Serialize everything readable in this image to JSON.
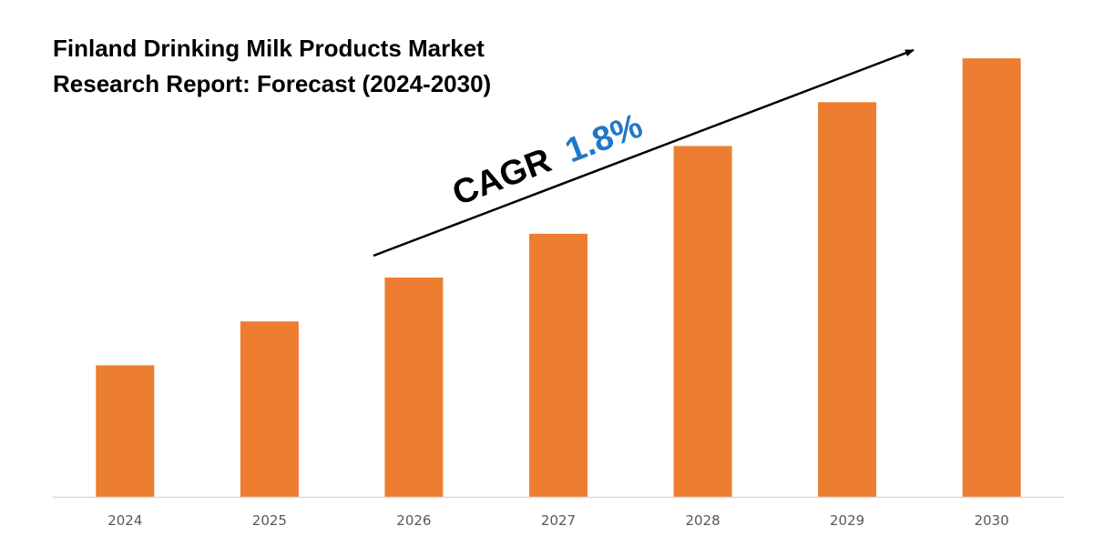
{
  "chart_data": {
    "type": "bar",
    "title": "Finland Drinking Milk Products Market Research Report: Forecast (2024-2030)",
    "title_lines": [
      "Finland Drinking Milk Products Market",
      "Research Report: Forecast (2024-2030)"
    ],
    "categories": [
      "2024",
      "2025",
      "2026",
      "2027",
      "2028",
      "2029",
      "2030"
    ],
    "values": [
      30,
      40,
      50,
      60,
      80,
      90,
      100
    ],
    "ylim": [
      0,
      105
    ],
    "xlabel": "",
    "ylabel": "",
    "grid": false,
    "legend": "none",
    "annotation": {
      "label": "CAGR",
      "value": "1.8%"
    }
  },
  "colors": {
    "bar": "#ED7D31",
    "cagr_value": "#1F78C8",
    "axis": "#D9D9D9",
    "arrow": "#000000",
    "title": "#000000"
  }
}
